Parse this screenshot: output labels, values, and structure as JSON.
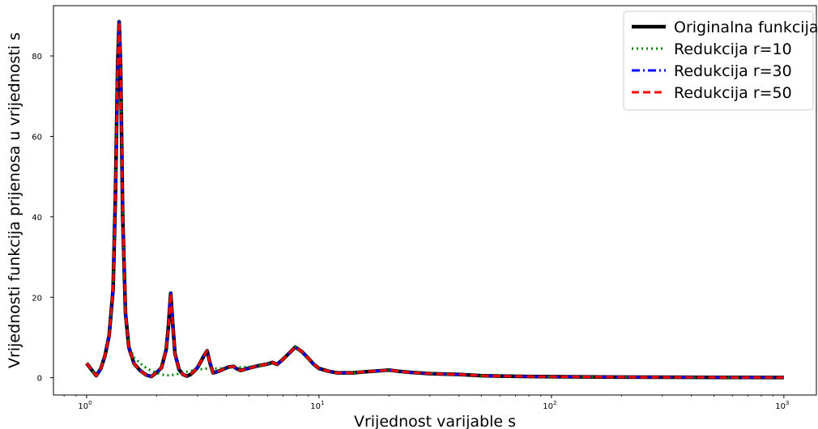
{
  "chart_data": {
    "type": "line",
    "title": "",
    "xlabel": "Vrijednost varijable s",
    "ylabel": "Vrijednosti funkcija prijenosa u vrijednosti s",
    "xscale": "log",
    "xlim": [
      0.72,
      1380
    ],
    "ylim": [
      -4.3,
      92.5
    ],
    "grid": false,
    "legend_position": "top-right",
    "x_ticks": [
      {
        "value": 1,
        "base": "10",
        "exp": "0"
      },
      {
        "value": 10,
        "base": "10",
        "exp": "1"
      },
      {
        "value": 100,
        "base": "10",
        "exp": "2"
      },
      {
        "value": 1000,
        "base": "10",
        "exp": "3"
      }
    ],
    "y_ticks": [
      0,
      20,
      40,
      60,
      80
    ],
    "x": [
      1.0,
      1.05,
      1.1,
      1.15,
      1.2,
      1.25,
      1.3,
      1.33,
      1.36,
      1.38,
      1.4,
      1.43,
      1.47,
      1.52,
      1.6,
      1.7,
      1.8,
      1.9,
      2.0,
      2.1,
      2.2,
      2.25,
      2.3,
      2.35,
      2.4,
      2.5,
      2.6,
      2.7,
      2.8,
      2.9,
      3.0,
      3.1,
      3.2,
      3.3,
      3.4,
      3.5,
      3.7,
      3.9,
      4.1,
      4.3,
      4.4,
      4.6,
      5.0,
      5.5,
      6.0,
      6.3,
      6.6,
      7.0,
      7.5,
      7.9,
      8.2,
      8.5,
      9.0,
      9.5,
      10.0,
      11.0,
      12.0,
      14.0,
      16.0,
      18.0,
      20.0,
      22.0,
      25.0,
      30.0,
      40.0,
      50.0,
      60.0,
      80.0,
      100.0,
      200.0,
      400.0,
      700.0,
      1000.0
    ],
    "series": [
      {
        "name": "Originalna funkcija",
        "color": "#000000",
        "style": "solid",
        "values": [
          3.6,
          2.0,
          0.5,
          2.2,
          5.5,
          10.5,
          22.0,
          45.0,
          78.0,
          88.5,
          78.0,
          40.0,
          16.0,
          7.5,
          3.5,
          1.8,
          0.7,
          0.3,
          1.3,
          2.5,
          7.0,
          13.0,
          21.0,
          13.0,
          6.0,
          2.0,
          0.8,
          0.4,
          0.8,
          1.6,
          2.5,
          4.0,
          5.5,
          6.7,
          3.5,
          1.2,
          1.6,
          2.2,
          2.7,
          2.8,
          2.3,
          1.8,
          2.4,
          3.0,
          3.4,
          3.8,
          3.3,
          4.6,
          6.3,
          7.6,
          7.0,
          6.3,
          4.8,
          3.3,
          2.3,
          1.6,
          1.2,
          1.2,
          1.5,
          1.7,
          1.9,
          1.6,
          1.3,
          1.0,
          0.8,
          0.5,
          0.4,
          0.3,
          0.25,
          0.15,
          0.1,
          0.08,
          0.06
        ]
      },
      {
        "name": "Redukcija r=10",
        "color": "#008000",
        "style": "dotted",
        "values": [
          3.6,
          2.0,
          0.5,
          2.2,
          5.5,
          10.5,
          22.0,
          45.0,
          78.0,
          88.5,
          78.0,
          40.0,
          16.0,
          8.0,
          5.0,
          3.6,
          2.5,
          1.7,
          1.2,
          0.8,
          0.6,
          0.6,
          0.6,
          0.7,
          0.8,
          1.0,
          1.2,
          1.5,
          1.7,
          1.9,
          2.0,
          2.1,
          2.2,
          2.3,
          2.3,
          2.3,
          2.3,
          2.4,
          2.5,
          2.6,
          2.6,
          2.6,
          2.7,
          3.0,
          3.4,
          3.8,
          3.3,
          4.6,
          6.3,
          7.6,
          7.0,
          6.3,
          4.8,
          3.3,
          2.3,
          1.6,
          1.2,
          1.2,
          1.5,
          1.7,
          1.9,
          1.6,
          1.3,
          1.0,
          0.8,
          0.5,
          0.4,
          0.3,
          0.25,
          0.15,
          0.1,
          0.08,
          0.06
        ]
      },
      {
        "name": "Redukcija r=30",
        "color": "#0000ff",
        "style": "dashdot",
        "values": [
          3.6,
          2.0,
          0.5,
          2.2,
          5.5,
          10.5,
          22.0,
          45.0,
          78.0,
          88.5,
          78.0,
          40.0,
          16.0,
          7.5,
          3.5,
          1.8,
          0.7,
          0.3,
          1.3,
          2.5,
          7.0,
          13.0,
          21.0,
          13.0,
          6.0,
          2.0,
          0.8,
          0.4,
          0.8,
          1.6,
          2.5,
          4.0,
          5.5,
          6.7,
          3.5,
          1.2,
          1.6,
          2.2,
          2.7,
          2.8,
          2.3,
          1.8,
          2.4,
          3.0,
          3.4,
          3.8,
          3.3,
          4.6,
          6.3,
          7.6,
          7.0,
          6.3,
          4.8,
          3.3,
          2.3,
          1.6,
          1.2,
          1.2,
          1.5,
          1.7,
          1.9,
          1.6,
          1.3,
          1.0,
          0.8,
          0.5,
          0.4,
          0.3,
          0.25,
          0.15,
          0.1,
          0.08,
          0.06
        ]
      },
      {
        "name": "Redukcija r=50",
        "color": "#ff0000",
        "style": "dashed",
        "values": [
          3.6,
          2.0,
          0.5,
          2.2,
          5.5,
          10.5,
          22.0,
          45.0,
          78.0,
          88.5,
          78.0,
          40.0,
          16.0,
          7.5,
          3.5,
          1.8,
          0.7,
          0.3,
          1.3,
          2.5,
          7.0,
          13.0,
          21.0,
          13.0,
          6.0,
          2.0,
          0.8,
          0.4,
          0.8,
          1.6,
          2.5,
          4.0,
          5.5,
          6.7,
          3.5,
          1.2,
          1.6,
          2.2,
          2.7,
          2.8,
          2.3,
          1.8,
          2.4,
          3.0,
          3.4,
          3.8,
          3.3,
          4.6,
          6.3,
          7.6,
          7.0,
          6.3,
          4.8,
          3.3,
          2.3,
          1.6,
          1.2,
          1.2,
          1.5,
          1.7,
          1.9,
          1.6,
          1.3,
          1.0,
          0.8,
          0.5,
          0.4,
          0.3,
          0.25,
          0.15,
          0.1,
          0.08,
          0.06
        ]
      }
    ]
  }
}
